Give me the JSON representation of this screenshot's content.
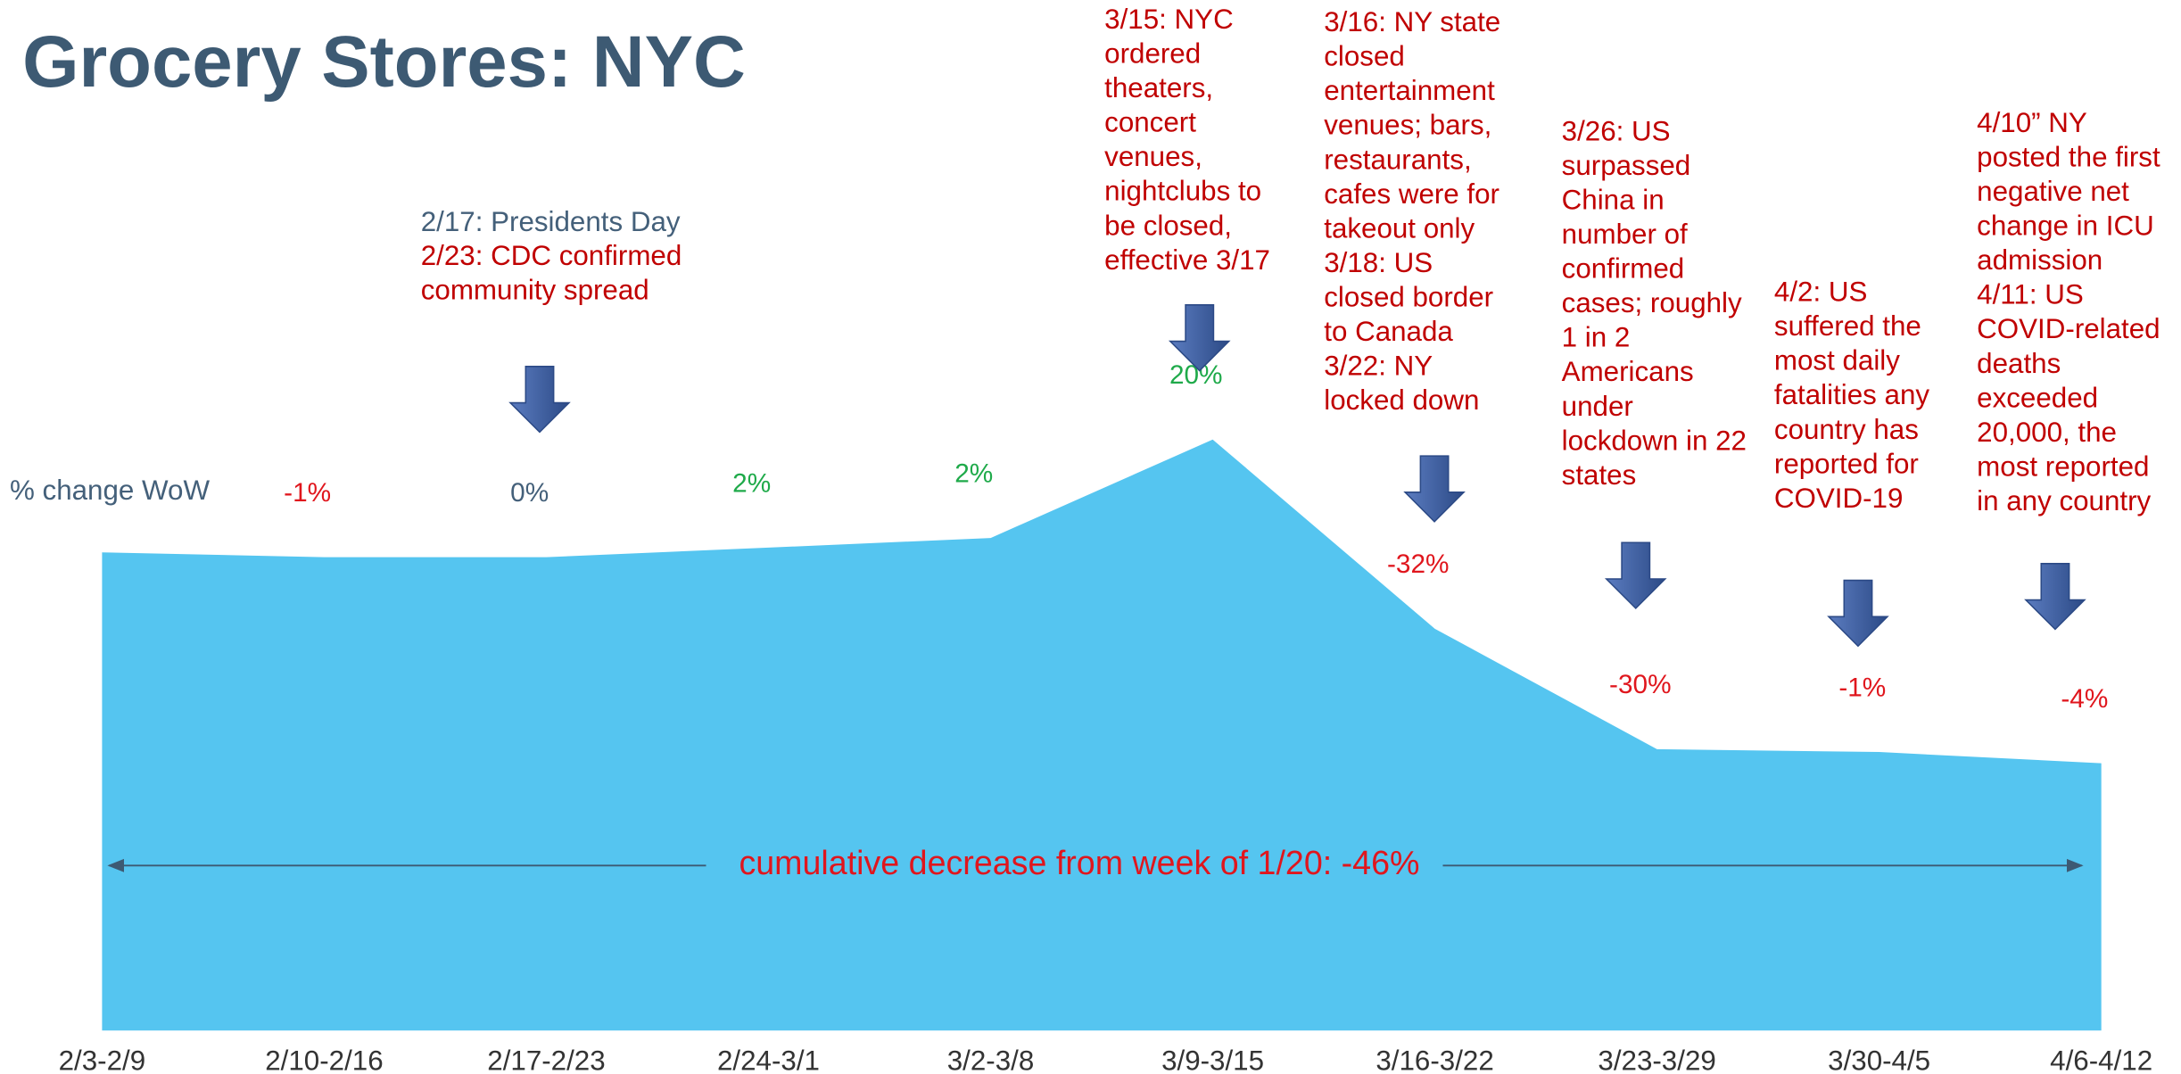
{
  "chart_data": {
    "type": "area",
    "title": "Grocery Stores: NYC",
    "value_axis_label": "% change WoW",
    "categories": [
      "2/3-2/9",
      "2/10-2/16",
      "2/17-2/23",
      "2/24-3/1",
      "3/2-3/8",
      "3/9-3/15",
      "3/16-3/22",
      "3/23-3/29",
      "3/30-4/5",
      "4/6-4/12"
    ],
    "values": [
      null,
      -1,
      0,
      2,
      2,
      20,
      -32,
      -30,
      -1,
      -4
    ],
    "value_labels": [
      null,
      "-1%",
      "0%",
      "2%",
      "2%",
      "20%",
      "-32%",
      "-30%",
      "-1%",
      "-4%"
    ],
    "color": "#55c5f0",
    "positive_color": "#1faa4a",
    "negative_color": "#e0161d",
    "zero_color": "#44607a",
    "summary": "cumulative decrease from week of 1/20: -46%",
    "annotations": [
      {
        "color": "#44607a",
        "lines": [
          "2/17: Presidents Day"
        ]
      },
      {
        "color": "#c00000",
        "lines": [
          "2/23: CDC confirmed",
          "community spread"
        ]
      },
      {
        "color": "#c00000",
        "lines": [
          "3/15: NYC",
          "ordered",
          "theaters,",
          "concert",
          "venues,",
          "nightclubs to",
          "be closed,",
          "effective 3/17"
        ]
      },
      {
        "color": "#c00000",
        "lines": [
          "3/16: NY state",
          "closed",
          "entertainment",
          "venues; bars,",
          "restaurants,",
          "cafes were for",
          "takeout only",
          "3/18: US",
          "closed border",
          "to Canada",
          "3/22: NY",
          "locked down"
        ]
      },
      {
        "color": "#c00000",
        "lines": [
          "3/26: US",
          "surpassed",
          "China in",
          "number of",
          "confirmed",
          "cases; roughly",
          "1 in 2",
          "Americans",
          "under",
          "lockdown in 22",
          "states"
        ]
      },
      {
        "color": "#c00000",
        "lines": [
          "4/2: US",
          "suffered the",
          "most daily",
          "fatalities any",
          "country has",
          "reported for",
          "COVID-19"
        ]
      },
      {
        "color": "#c00000",
        "lines": [
          "4/10” NY",
          "posted the first",
          "negative net",
          "change in ICU",
          "admission",
          "4/11: US",
          "COVID-related",
          "deaths",
          "exceeded",
          "20,000, the",
          "most reported",
          "in any country"
        ]
      }
    ]
  }
}
